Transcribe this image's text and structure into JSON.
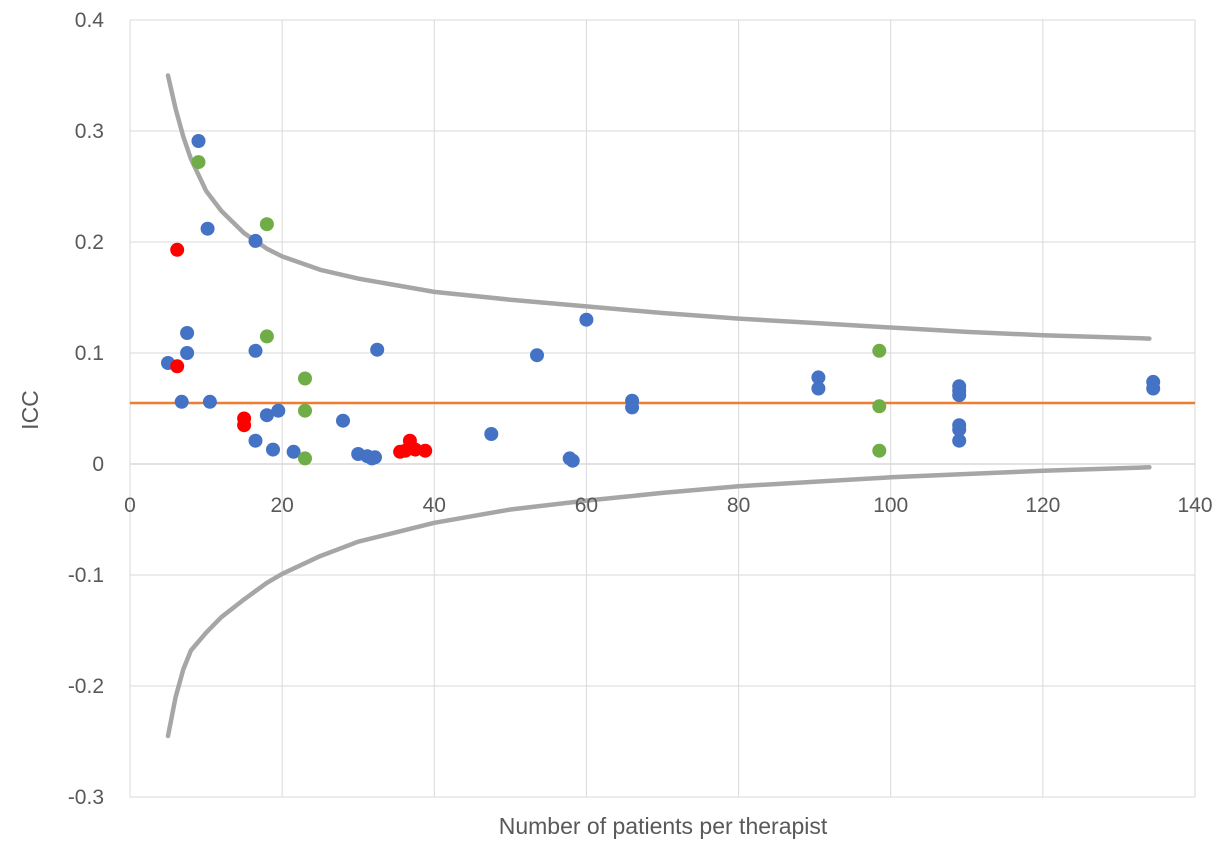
{
  "chart_data": {
    "type": "scatter",
    "xlabel": "Number of patients per therapist",
    "ylabel": "ICC",
    "xlim": [
      0,
      140
    ],
    "ylim": [
      -0.3,
      0.4
    ],
    "x_ticks": [
      "0",
      "20",
      "40",
      "60",
      "80",
      "100",
      "120",
      "140"
    ],
    "y_ticks": [
      "0.4",
      "0.3",
      "0.2",
      "0.1",
      "0",
      "-0.1",
      "-0.2",
      "-0.3"
    ],
    "grid": true,
    "legend": "none",
    "colors": {
      "blue": "#4472c4",
      "green": "#70ad47",
      "red": "#ff0000",
      "reference_line": "#ed7d31",
      "funnel": "#a6a6a6",
      "grid": "#d9d9d9",
      "text": "#595959"
    },
    "reference_line": {
      "y": 0.055
    },
    "upper_funnel": {
      "x": [
        5,
        6,
        7,
        8,
        10,
        12,
        15,
        18,
        20,
        25,
        30,
        40,
        50,
        60,
        70,
        80,
        90,
        100,
        110,
        120,
        134
      ],
      "y": [
        0.35,
        0.32,
        0.295,
        0.275,
        0.246,
        0.228,
        0.208,
        0.194,
        0.187,
        0.175,
        0.167,
        0.155,
        0.148,
        0.142,
        0.136,
        0.131,
        0.127,
        0.123,
        0.119,
        0.116,
        0.113
      ]
    },
    "lower_funnel": {
      "x": [
        5,
        6,
        7,
        8,
        10,
        12,
        15,
        18,
        20,
        25,
        30,
        40,
        50,
        60,
        70,
        80,
        90,
        100,
        110,
        120,
        134
      ],
      "y": [
        -0.245,
        -0.21,
        -0.185,
        -0.168,
        -0.152,
        -0.138,
        -0.122,
        -0.107,
        -0.099,
        -0.083,
        -0.07,
        -0.053,
        -0.041,
        -0.033,
        -0.026,
        -0.02,
        -0.016,
        -0.012,
        -0.009,
        -0.006,
        -0.003
      ]
    },
    "series": [
      {
        "color": "blue",
        "points": [
          [
            5,
            0.091
          ],
          [
            9,
            0.291
          ],
          [
            10.2,
            0.212
          ],
          [
            7.5,
            0.118
          ],
          [
            7.5,
            0.1
          ],
          [
            6.8,
            0.056
          ],
          [
            10.5,
            0.056
          ],
          [
            16.5,
            0.201
          ],
          [
            16.5,
            0.102
          ],
          [
            18,
            0.044
          ],
          [
            19.5,
            0.048
          ],
          [
            16.5,
            0.021
          ],
          [
            18.8,
            0.013
          ],
          [
            21.5,
            0.011
          ],
          [
            28,
            0.039
          ],
          [
            30,
            0.009
          ],
          [
            31.2,
            0.007
          ],
          [
            31.8,
            0.005
          ],
          [
            32.2,
            0.006
          ],
          [
            32.5,
            0.103
          ],
          [
            47.5,
            0.027
          ],
          [
            53.5,
            0.098
          ],
          [
            57.8,
            0.005
          ],
          [
            58.2,
            0.003
          ],
          [
            60,
            0.13
          ],
          [
            66,
            0.057
          ],
          [
            66,
            0.051
          ],
          [
            90.5,
            0.078
          ],
          [
            90.5,
            0.068
          ],
          [
            109,
            0.07
          ],
          [
            109,
            0.066
          ],
          [
            109,
            0.062
          ],
          [
            109,
            0.035
          ],
          [
            109,
            0.031
          ],
          [
            109,
            0.021
          ],
          [
            134.5,
            0.074
          ],
          [
            134.5,
            0.068
          ]
        ]
      },
      {
        "color": "green",
        "points": [
          [
            9,
            0.272
          ],
          [
            18,
            0.216
          ],
          [
            18,
            0.115
          ],
          [
            23,
            0.077
          ],
          [
            23,
            0.048
          ],
          [
            23,
            0.005
          ],
          [
            98.5,
            0.102
          ],
          [
            98.5,
            0.052
          ],
          [
            98.5,
            0.012
          ]
        ]
      },
      {
        "color": "red",
        "points": [
          [
            6.2,
            0.193
          ],
          [
            6.2,
            0.088
          ],
          [
            15,
            0.041
          ],
          [
            15,
            0.035
          ],
          [
            35.5,
            0.011
          ],
          [
            36.2,
            0.012
          ],
          [
            36.8,
            0.021
          ],
          [
            37,
            0.015
          ],
          [
            37.5,
            0.013
          ],
          [
            38.8,
            0.012
          ]
        ]
      }
    ]
  }
}
